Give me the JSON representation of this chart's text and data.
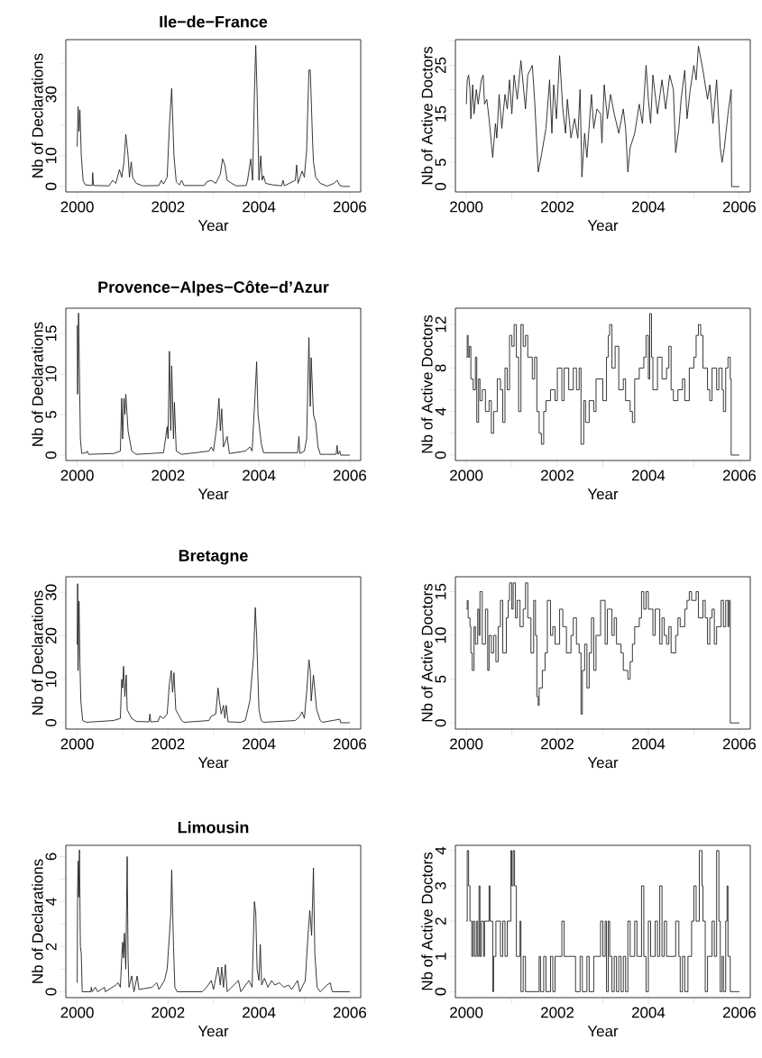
{
  "chart_data": [
    {
      "type": "line",
      "title": "Ile−de−France",
      "xlabel": "Year",
      "ylabel": "Nb of Declarations",
      "color": "#231f20",
      "xlim": [
        1999.75,
        2006.24
      ],
      "ylim": [
        -1.8,
        47.9
      ],
      "xticks": [
        2000,
        {
          "value": 2001,
          "label": null
        },
        2002,
        {
          "value": 2003,
          "label": null
        },
        2004,
        {
          "value": 2005,
          "label": null
        },
        2006
      ],
      "yticks": [
        0,
        10,
        {
          "value": 20,
          "label": null
        },
        30,
        {
          "value": 40,
          "label": null
        }
      ],
      "x": [
        2000.0,
        2000.02,
        2000.04,
        2000.06,
        2000.09,
        2000.13,
        2000.18,
        2000.33,
        2000.34,
        2000.36,
        2000.7,
        2000.78,
        2000.85,
        2000.93,
        2000.98,
        2001.03,
        2001.07,
        2001.12,
        2001.15,
        2001.19,
        2001.22,
        2001.3,
        2001.45,
        2001.8,
        2001.85,
        2001.9,
        2001.98,
        2002.03,
        2002.08,
        2002.13,
        2002.18,
        2002.25,
        2002.3,
        2002.35,
        2002.8,
        2002.85,
        2002.95,
        2003.05,
        2003.15,
        2003.2,
        2003.25,
        2003.3,
        2003.4,
        2003.5,
        2003.72,
        2003.75,
        2003.82,
        2003.86,
        2003.9,
        2003.93,
        2003.96,
        2004.0,
        2004.04,
        2004.07,
        2004.1,
        2004.15,
        2004.3,
        2004.5,
        2004.53,
        2004.56,
        2004.8,
        2004.83,
        2004.86,
        2004.95,
        2005.0,
        2005.05,
        2005.1,
        2005.13,
        2005.18,
        2005.2,
        2005.25,
        2005.35,
        2005.5,
        2005.65,
        2005.72,
        2005.78,
        2005.85,
        2006.0
      ],
      "values": [
        13,
        26,
        18,
        25,
        10,
        2,
        0.5,
        0.3,
        4.5,
        0.3,
        0.2,
        2,
        1,
        5.5,
        3,
        8,
        17,
        10,
        3,
        8,
        3,
        1,
        0.2,
        0.3,
        2,
        0.8,
        3,
        20,
        32,
        10,
        1.5,
        0.5,
        2,
        0.3,
        0.3,
        1.5,
        2,
        1,
        4,
        9,
        7,
        2,
        1,
        0.2,
        0.3,
        2,
        9,
        2,
        30,
        46,
        30,
        2,
        10,
        2,
        3.5,
        1,
        0.5,
        0.2,
        2,
        0.2,
        2,
        7,
        1,
        5,
        3,
        12,
        38,
        38,
        15,
        8,
        3,
        1,
        0.1,
        1,
        2,
        0.3,
        0,
        0
      ]
    },
    {
      "type": "line",
      "xlabel": "Year",
      "ylabel": "Nb of Active Doctors",
      "color": "#231f20",
      "xlim": [
        1999.76,
        2006.24
      ],
      "ylim": [
        -1.1,
        30.3
      ],
      "xticks": [
        2000,
        {
          "value": 2001,
          "label": null
        },
        2002,
        {
          "value": 2003,
          "label": null
        },
        2004,
        {
          "value": 2005,
          "label": null
        },
        2006
      ],
      "yticks": [
        0,
        5,
        {
          "value": 10,
          "label": null
        },
        15,
        {
          "value": 20,
          "label": null
        },
        25,
        {
          "value": 30,
          "label": null
        }
      ],
      "x": [
        2000.0,
        2000.02,
        2000.05,
        2000.08,
        2000.1,
        2000.14,
        2000.17,
        2000.22,
        2000.26,
        2000.33,
        2000.37,
        2000.4,
        2000.45,
        2000.5,
        2000.58,
        2000.64,
        2000.67,
        2000.72,
        2000.78,
        2000.85,
        2000.9,
        2000.95,
        2001.0,
        2001.05,
        2001.12,
        2001.2,
        2001.3,
        2001.35,
        2001.45,
        2001.5,
        2001.58,
        2001.66,
        2001.75,
        2001.83,
        2001.88,
        2001.92,
        2001.98,
        2002.05,
        2002.12,
        2002.18,
        2002.22,
        2002.3,
        2002.38,
        2002.45,
        2002.5,
        2002.54,
        2002.6,
        2002.65,
        2002.75,
        2002.8,
        2002.87,
        2002.95,
        2002.98,
        2003.03,
        2003.1,
        2003.17,
        2003.25,
        2003.35,
        2003.45,
        2003.5,
        2003.55,
        2003.6,
        2003.7,
        2003.8,
        2003.87,
        2003.95,
        2004.0,
        2004.05,
        2004.1,
        2004.2,
        2004.3,
        2004.38,
        2004.47,
        2004.55,
        2004.6,
        2004.67,
        2004.72,
        2004.8,
        2004.85,
        2004.92,
        2005.0,
        2005.05,
        2005.1,
        2005.2,
        2005.3,
        2005.35,
        2005.42,
        2005.5,
        2005.58,
        2005.62,
        2005.67,
        2005.75,
        2005.82,
        2005.83,
        2006.0
      ],
      "values": [
        17,
        22,
        23,
        20,
        14,
        21,
        15,
        20,
        17,
        22,
        23,
        17,
        18,
        14,
        6,
        13,
        10,
        19,
        12,
        19,
        16,
        22,
        15,
        23,
        18,
        26,
        16,
        23,
        25,
        18,
        3,
        7,
        12,
        22,
        11,
        21,
        14,
        27,
        16,
        11,
        18,
        10,
        14,
        10,
        20,
        2,
        11,
        6,
        19,
        12,
        16,
        15,
        9,
        21,
        14,
        19,
        15,
        11,
        16,
        12,
        3,
        8,
        11,
        17,
        13,
        25,
        18,
        13,
        23,
        15,
        22,
        16,
        23,
        20,
        7,
        12,
        18,
        24,
        14,
        20,
        25,
        22,
        29,
        24,
        18,
        21,
        13,
        22,
        8,
        5,
        8,
        15,
        20,
        0,
        0
      ]
    },
    {
      "type": "line",
      "title": "Provence−Alpes−Côte−d’Azur",
      "xlabel": "Year",
      "ylabel": "Nb of Declarations",
      "color": "#231f20",
      "xlim": [
        1999.75,
        2006.24
      ],
      "ylim": [
        -0.66,
        18.1
      ],
      "xticks": [
        2000,
        {
          "value": 2001,
          "label": null
        },
        2002,
        {
          "value": 2003,
          "label": null
        },
        2004,
        {
          "value": 2005,
          "label": null
        },
        2006
      ],
      "yticks": [
        0,
        5,
        10,
        15
      ],
      "x": [
        2000.0,
        2000.01,
        2000.03,
        2000.05,
        2000.07,
        2000.1,
        2000.2,
        2000.22,
        2000.25,
        2000.8,
        2000.95,
        2000.98,
        2001.0,
        2001.03,
        2001.05,
        2001.07,
        2001.12,
        2001.2,
        2001.3,
        2001.9,
        2001.98,
        2002.0,
        2002.03,
        2002.06,
        2002.08,
        2002.12,
        2002.14,
        2002.18,
        2002.3,
        2002.9,
        2002.95,
        2003.0,
        2003.08,
        2003.12,
        2003.15,
        2003.18,
        2003.22,
        2003.3,
        2003.35,
        2003.7,
        2003.8,
        2003.85,
        2003.92,
        2003.95,
        2003.98,
        2004.05,
        2004.1,
        2004.85,
        2004.88,
        2004.9,
        2005.0,
        2005.05,
        2005.1,
        2005.13,
        2005.15,
        2005.2,
        2005.25,
        2005.3,
        2005.35,
        2005.7,
        2005.72,
        2005.74,
        2005.78,
        2005.8,
        2006.0
      ],
      "values": [
        16,
        7.5,
        17.5,
        10,
        2,
        0.2,
        0.3,
        0.5,
        0.1,
        0.2,
        0.5,
        7,
        2,
        7,
        5,
        7.5,
        3,
        0.5,
        0.1,
        0.3,
        3.5,
        2,
        12.8,
        3,
        11,
        2,
        6.5,
        0.5,
        0.1,
        0.5,
        1,
        0.5,
        4,
        7,
        3,
        5.7,
        1,
        2.3,
        0.2,
        0.5,
        1,
        0.5,
        8,
        11.5,
        5,
        1.5,
        0.3,
        0.3,
        2.3,
        0.2,
        0.5,
        2,
        14.5,
        6,
        12,
        5,
        4,
        1,
        0.1,
        0.1,
        1.2,
        0.1,
        0.5,
        0,
        0
      ]
    },
    {
      "type": "step",
      "xlabel": "Year",
      "ylabel": "Nb of Active Doctors",
      "color": "#231f20",
      "xlim": [
        1999.76,
        2006.24
      ],
      "ylim": [
        -0.5,
        13.5
      ],
      "xticks": [
        2000,
        {
          "value": 2001,
          "label": null
        },
        2002,
        {
          "value": 2003,
          "label": null
        },
        2004,
        {
          "value": 2005,
          "label": null
        },
        2006
      ],
      "yticks": [
        0,
        {
          "value": 2,
          "label": null
        },
        4,
        {
          "value": 6,
          "label": null
        },
        8,
        {
          "value": 10,
          "label": null
        },
        12
      ],
      "x": [
        2000.0,
        2000.02,
        2000.04,
        2000.07,
        2000.1,
        2000.15,
        2000.2,
        2000.23,
        2000.27,
        2000.3,
        2000.35,
        2000.42,
        2000.5,
        2000.55,
        2000.6,
        2000.68,
        2000.75,
        2000.8,
        2000.85,
        2000.9,
        2000.95,
        2001.0,
        2001.05,
        2001.1,
        2001.15,
        2001.2,
        2001.25,
        2001.3,
        2001.35,
        2001.45,
        2001.5,
        2001.55,
        2001.6,
        2001.65,
        2001.7,
        2001.75,
        2001.85,
        2001.95,
        2002.0,
        2002.1,
        2002.15,
        2002.25,
        2002.35,
        2002.42,
        2002.48,
        2002.52,
        2002.58,
        2002.62,
        2002.7,
        2002.8,
        2002.85,
        2003.0,
        2003.08,
        2003.12,
        2003.15,
        2003.2,
        2003.27,
        2003.35,
        2003.45,
        2003.5,
        2003.6,
        2003.65,
        2003.7,
        2003.8,
        2003.9,
        2003.95,
        2004.0,
        2004.03,
        2004.07,
        2004.1,
        2004.2,
        2004.3,
        2004.4,
        2004.45,
        2004.5,
        2004.55,
        2004.65,
        2004.75,
        2004.8,
        2004.9,
        2005.0,
        2005.05,
        2005.1,
        2005.15,
        2005.2,
        2005.3,
        2005.35,
        2005.4,
        2005.5,
        2005.55,
        2005.62,
        2005.65,
        2005.7,
        2005.75,
        2005.8,
        2005.82,
        2006.0
      ],
      "values": [
        9,
        11,
        9,
        10,
        7,
        6,
        9,
        3,
        7,
        5,
        6,
        4,
        5,
        2,
        4,
        7,
        6,
        3,
        8,
        6,
        11,
        10,
        12,
        9,
        4,
        12,
        10,
        11,
        9,
        7,
        9,
        4,
        2,
        1,
        4,
        5,
        6,
        5,
        8,
        5,
        8,
        6,
        8,
        6,
        8,
        1,
        5,
        3,
        5,
        4,
        7,
        5,
        9,
        11,
        12,
        8,
        10,
        6,
        7,
        5,
        4,
        3,
        7,
        8,
        9,
        11,
        7,
        13,
        9,
        6,
        9,
        7,
        8,
        10,
        6,
        5,
        6,
        7,
        5,
        8,
        9,
        11,
        12,
        11,
        8,
        6,
        5,
        8,
        6,
        8,
        6,
        4,
        8,
        9,
        7,
        0,
        0
      ]
    },
    {
      "type": "line",
      "title": "Bretagne",
      "xlabel": "Year",
      "ylabel": "Nb of Declarations",
      "color": "#231f20",
      "xlim": [
        1999.75,
        2006.24
      ],
      "ylim": [
        -1.46,
        33.6
      ],
      "xticks": [
        2000,
        {
          "value": 2001,
          "label": null
        },
        2002,
        {
          "value": 2003,
          "label": null
        },
        2004,
        {
          "value": 2005,
          "label": null
        },
        2006
      ],
      "yticks": [
        0,
        10,
        20,
        30
      ],
      "x": [
        2000.0,
        2000.01,
        2000.02,
        2000.04,
        2000.06,
        2000.08,
        2000.12,
        2000.2,
        2000.8,
        2000.95,
        2000.98,
        2001.0,
        2001.02,
        2001.05,
        2001.08,
        2001.1,
        2001.15,
        2001.2,
        2001.3,
        2001.58,
        2001.6,
        2001.62,
        2001.78,
        2001.82,
        2001.9,
        2001.98,
        2002.03,
        2002.07,
        2002.1,
        2002.13,
        2002.17,
        2002.22,
        2002.3,
        2002.35,
        2002.9,
        2002.95,
        2003.05,
        2003.1,
        2003.13,
        2003.17,
        2003.22,
        2003.25,
        2003.28,
        2003.32,
        2003.6,
        2003.7,
        2003.8,
        2003.88,
        2003.92,
        2003.95,
        2004.0,
        2004.05,
        2004.1,
        2004.8,
        2004.9,
        2004.95,
        2005.0,
        2005.05,
        2005.1,
        2005.13,
        2005.15,
        2005.2,
        2005.27,
        2005.35,
        2005.4,
        2005.78,
        2005.8,
        2006.0
      ],
      "values": [
        18,
        32,
        12,
        28,
        14,
        5,
        0.5,
        0.1,
        0.5,
        1,
        10,
        8,
        13,
        6,
        11,
        3,
        2,
        1,
        0.3,
        0.2,
        2,
        0.2,
        0.3,
        1.5,
        1,
        2,
        9,
        12,
        7,
        11.5,
        3,
        2,
        0.5,
        0.1,
        0.5,
        1.5,
        2,
        8,
        5,
        2,
        4,
        1,
        4,
        0.2,
        0.1,
        0.5,
        5,
        15,
        26.5,
        20,
        3,
        0.5,
        0.1,
        0.5,
        1.5,
        2.5,
        1,
        7,
        14.5,
        12,
        5,
        11,
        3,
        0.5,
        0.1,
        0.8,
        0,
        0
      ]
    },
    {
      "type": "step",
      "xlabel": "Year",
      "ylabel": "Nb of Active Doctors",
      "color": "#231f20",
      "xlim": [
        1999.76,
        2006.24
      ],
      "ylim": [
        -0.7,
        16.7
      ],
      "xticks": [
        2000,
        {
          "value": 2001,
          "label": null
        },
        2002,
        {
          "value": 2003,
          "label": null
        },
        2004,
        {
          "value": 2005,
          "label": null
        },
        2006
      ],
      "yticks": [
        0,
        5,
        10,
        15
      ],
      "x": [
        2000.0,
        2000.02,
        2000.04,
        2000.08,
        2000.1,
        2000.13,
        2000.17,
        2000.2,
        2000.25,
        2000.28,
        2000.3,
        2000.35,
        2000.42,
        2000.47,
        2000.5,
        2000.55,
        2000.6,
        2000.65,
        2000.7,
        2000.75,
        2000.8,
        2000.88,
        2000.92,
        2000.95,
        2001.0,
        2001.03,
        2001.08,
        2001.12,
        2001.18,
        2001.25,
        2001.3,
        2001.35,
        2001.42,
        2001.48,
        2001.52,
        2001.55,
        2001.58,
        2001.6,
        2001.67,
        2001.73,
        2001.78,
        2001.85,
        2001.9,
        2001.95,
        2002.05,
        2002.12,
        2002.2,
        2002.3,
        2002.35,
        2002.42,
        2002.48,
        2002.52,
        2002.55,
        2002.6,
        2002.65,
        2002.7,
        2002.75,
        2002.8,
        2002.85,
        2002.95,
        2003.05,
        2003.1,
        2003.2,
        2003.25,
        2003.3,
        2003.4,
        2003.45,
        2003.55,
        2003.6,
        2003.65,
        2003.7,
        2003.8,
        2003.85,
        2003.9,
        2003.95,
        2004.0,
        2004.1,
        2004.15,
        2004.25,
        2004.3,
        2004.35,
        2004.4,
        2004.45,
        2004.5,
        2004.6,
        2004.65,
        2004.7,
        2004.8,
        2004.85,
        2004.9,
        2004.95,
        2005.05,
        2005.1,
        2005.2,
        2005.25,
        2005.3,
        2005.35,
        2005.4,
        2005.45,
        2005.5,
        2005.6,
        2005.65,
        2005.7,
        2005.75,
        2005.77,
        2005.8,
        2006.0
      ],
      "values": [
        13,
        14,
        12,
        11,
        8,
        6,
        11,
        9,
        13,
        10,
        15,
        9,
        13,
        6,
        10,
        8,
        10,
        7,
        11,
        14,
        8,
        12,
        14,
        16,
        13,
        16,
        12,
        14,
        11,
        13,
        16,
        12,
        8,
        14,
        10,
        3,
        2,
        4,
        6,
        8,
        14,
        10,
        11,
        9,
        13,
        11,
        8,
        10,
        12,
        9,
        8,
        1,
        6,
        9,
        4,
        8,
        12,
        6,
        10,
        14,
        9,
        13,
        10,
        12,
        9,
        8,
        6,
        5,
        7,
        9,
        11,
        12,
        15,
        13,
        15,
        13,
        10,
        13,
        9,
        12,
        10,
        9,
        11,
        8,
        10,
        12,
        11,
        13,
        14,
        15,
        14,
        15,
        12,
        14,
        12,
        9,
        12,
        13,
        9,
        11,
        14,
        11,
        14,
        11,
        14,
        0,
        0
      ]
    },
    {
      "type": "line",
      "title": "Limousin",
      "xlabel": "Year",
      "ylabel": "Nb of Declarations",
      "color": "#231f20",
      "xlim": [
        1999.75,
        2006.24
      ],
      "ylim": [
        -0.26,
        6.5
      ],
      "xticks": [
        2000,
        {
          "value": 2001,
          "label": null
        },
        2002,
        {
          "value": 2003,
          "label": null
        },
        2004,
        {
          "value": 2005,
          "label": null
        },
        2006
      ],
      "yticks": [
        0,
        {
          "value": 1,
          "label": null
        },
        2,
        {
          "value": 3,
          "label": null
        },
        4,
        {
          "value": 5,
          "label": null
        },
        6
      ],
      "x": [
        2000.0,
        2000.01,
        2000.02,
        2000.03,
        2000.05,
        2000.07,
        2000.09,
        2000.11,
        2000.3,
        2000.31,
        2000.33,
        2000.4,
        2000.45,
        2000.6,
        2000.62,
        2000.85,
        2000.9,
        2000.95,
        2000.98,
        2001.0,
        2001.02,
        2001.04,
        2001.07,
        2001.1,
        2001.12,
        2001.14,
        2001.2,
        2001.25,
        2001.32,
        2001.36,
        2001.65,
        2001.75,
        2001.8,
        2001.92,
        2001.98,
        2002.03,
        2002.06,
        2002.08,
        2002.12,
        2002.15,
        2002.2,
        2002.75,
        2002.85,
        2002.95,
        2003.0,
        2003.1,
        2003.15,
        2003.18,
        2003.22,
        2003.26,
        2003.3,
        2003.55,
        2003.6,
        2003.78,
        2003.85,
        2003.9,
        2003.93,
        2003.96,
        2004.0,
        2004.03,
        2004.06,
        2004.12,
        2004.2,
        2004.28,
        2004.35,
        2004.45,
        2004.55,
        2004.65,
        2004.72,
        2004.85,
        2004.9,
        2005.02,
        2005.08,
        2005.12,
        2005.16,
        2005.2,
        2005.23,
        2005.28,
        2005.35,
        2005.5,
        2005.57,
        2005.6,
        2005.62,
        2006.0
      ],
      "values": [
        0.4,
        4.5,
        5.8,
        4.2,
        6.3,
        2,
        1.7,
        0,
        0,
        0.2,
        0,
        0.2,
        0,
        0.2,
        0,
        0.3,
        0.4,
        0.2,
        1.5,
        2.2,
        1.5,
        2.6,
        1,
        6,
        1.5,
        0.2,
        0.7,
        0,
        0.7,
        0.1,
        0.2,
        0.4,
        0.1,
        0.5,
        1,
        2.5,
        3.5,
        5.4,
        2,
        0.2,
        0,
        0,
        0.2,
        0.5,
        0.1,
        1.1,
        0.3,
        1.1,
        0.2,
        1.2,
        0,
        0.5,
        0,
        0.5,
        0.2,
        4,
        3.5,
        1,
        0.5,
        2.1,
        0.3,
        0.6,
        0.2,
        0.5,
        0.3,
        0.4,
        0.2,
        0.3,
        0.1,
        0.5,
        0,
        0.5,
        2.5,
        3.6,
        2.5,
        5.5,
        1.7,
        0.2,
        0,
        0.3,
        0.4,
        0.1,
        0,
        0
      ]
    },
    {
      "type": "step",
      "xlabel": "Year",
      "ylabel": "Nb of Active Doctors",
      "color": "#231f20",
      "xlim": [
        1999.76,
        2006.24
      ],
      "ylim": [
        -0.17,
        4.15
      ],
      "xticks": [
        2000,
        {
          "value": 2001,
          "label": null
        },
        2002,
        {
          "value": 2003,
          "label": null
        },
        2004,
        {
          "value": 2005,
          "label": null
        },
        2006
      ],
      "yticks": [
        0,
        1,
        2,
        3,
        4
      ],
      "x": [
        2000.0,
        2000.02,
        2000.05,
        2000.08,
        2000.12,
        2000.15,
        2000.18,
        2000.22,
        2000.25,
        2000.28,
        2000.3,
        2000.33,
        2000.38,
        2000.4,
        2000.5,
        2000.52,
        2000.58,
        2000.6,
        2000.65,
        2000.75,
        2000.8,
        2000.85,
        2000.9,
        2000.98,
        2001.0,
        2001.03,
        2001.06,
        2001.1,
        2001.18,
        2001.2,
        2001.25,
        2001.3,
        2001.6,
        2001.63,
        2001.7,
        2001.75,
        2001.85,
        2001.9,
        2001.95,
        2002.1,
        2002.15,
        2002.4,
        2002.5,
        2002.55,
        2002.65,
        2002.7,
        2002.8,
        2002.95,
        2003.0,
        2003.05,
        2003.08,
        2003.12,
        2003.15,
        2003.2,
        2003.25,
        2003.3,
        2003.35,
        2003.4,
        2003.45,
        2003.5,
        2003.55,
        2003.6,
        2003.7,
        2003.75,
        2003.85,
        2003.9,
        2003.95,
        2004.0,
        2004.05,
        2004.15,
        2004.2,
        2004.25,
        2004.3,
        2004.35,
        2004.4,
        2004.6,
        2004.67,
        2004.7,
        2004.75,
        2004.8,
        2004.87,
        2004.95,
        2005.0,
        2005.05,
        2005.12,
        2005.18,
        2005.2,
        2005.25,
        2005.3,
        2005.4,
        2005.45,
        2005.5,
        2005.55,
        2005.58,
        2005.62,
        2005.65,
        2005.7,
        2005.73,
        2005.75,
        2005.8,
        2006.0
      ],
      "values": [
        2,
        4,
        3,
        2,
        1,
        2,
        1,
        2,
        1,
        3,
        1,
        2,
        1,
        2,
        3,
        2,
        0,
        1,
        2,
        1,
        2,
        1,
        2,
        4,
        3,
        4,
        3,
        1,
        2,
        0,
        1,
        0,
        1,
        0,
        1,
        0,
        1,
        0,
        1,
        2,
        1,
        0,
        1,
        0,
        1,
        0,
        1,
        2,
        1,
        2,
        0,
        2,
        1,
        0,
        1,
        0,
        1,
        0,
        1,
        0,
        2,
        1,
        2,
        1,
        3,
        1,
        0,
        2,
        1,
        2,
        1,
        3,
        1,
        2,
        1,
        2,
        1,
        0,
        1,
        0,
        1,
        2,
        3,
        2,
        4,
        3,
        2,
        0,
        1,
        2,
        1,
        4,
        2,
        0,
        1,
        0,
        2,
        3,
        1,
        0,
        0
      ]
    }
  ]
}
